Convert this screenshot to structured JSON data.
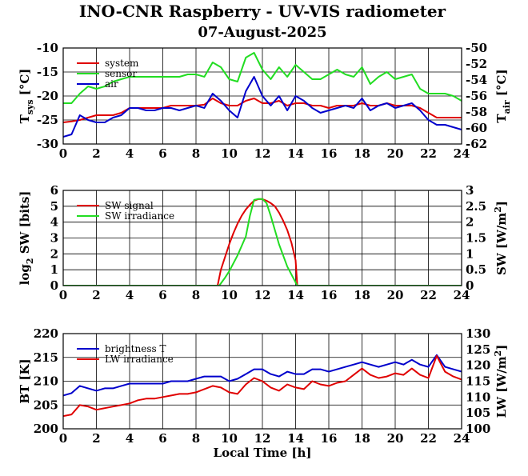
{
  "header": {
    "title": "INO-CNR Raspberry - UV-VIS radiometer",
    "date": "07-August-2025"
  },
  "colors": {
    "red": "#e00000",
    "green": "#22dd22",
    "blue": "#0000cc"
  },
  "chart_data": [
    {
      "type": "line",
      "panel": "temperatures",
      "x_ticks": [
        "0",
        "2",
        "4",
        "6",
        "8",
        "10",
        "12",
        "14",
        "16",
        "18",
        "20",
        "22",
        "24"
      ],
      "xlim": [
        0,
        24
      ],
      "ylabel_left": "T_sys [°C]",
      "ylabel_left_main": "T",
      "ylabel_left_sub": "sys",
      "ylabel_left_unit": " [°C]",
      "ylim_left": [
        -30,
        -10
      ],
      "yticks_left": [
        "-30",
        "-25",
        "-20",
        "-15",
        "-10"
      ],
      "ylabel_right": "T_air [°C]",
      "ylabel_right_main": "T",
      "ylabel_right_sub": "air",
      "ylabel_right_unit": " [°C]",
      "ylim_right": [
        -62,
        -50
      ],
      "yticks_right": [
        "-62",
        "-60",
        "-58",
        "-56",
        "-54",
        "-52",
        "-50"
      ],
      "grid": true,
      "legend_position": "top-left",
      "series": [
        {
          "name": "system",
          "color": "#e00000",
          "axis": "left",
          "x": [
            0,
            0.5,
            1,
            1.5,
            2,
            2.5,
            3,
            3.5,
            4,
            4.5,
            5,
            5.5,
            6,
            6.5,
            7,
            7.5,
            8,
            8.5,
            9,
            9.5,
            10,
            10.5,
            11,
            11.5,
            12,
            12.5,
            13,
            13.5,
            14,
            14.5,
            15,
            15.5,
            16,
            16.5,
            17,
            17.5,
            18,
            18.5,
            19,
            19.5,
            20,
            20.5,
            21,
            21.5,
            22,
            22.5,
            23,
            23.5,
            24
          ],
          "y": [
            -25.5,
            -25.3,
            -25,
            -24.5,
            -24,
            -24,
            -24,
            -23.5,
            -22.5,
            -22.5,
            -22.5,
            -22.5,
            -22.5,
            -22,
            -22,
            -22,
            -22,
            -21.8,
            -20.5,
            -21.5,
            -22,
            -22,
            -21,
            -20.5,
            -21.5,
            -21.5,
            -21,
            -22,
            -21.5,
            -21.5,
            -22,
            -22,
            -22.5,
            -22,
            -22,
            -22,
            -21.5,
            -22,
            -22,
            -21.5,
            -22,
            -22,
            -22,
            -22.5,
            -23.5,
            -24.5,
            -24.5,
            -24.5,
            -24.5
          ]
        },
        {
          "name": "sensor",
          "color": "#22dd22",
          "axis": "left",
          "x": [
            0,
            0.5,
            1,
            1.5,
            2,
            2.5,
            3,
            3.5,
            4,
            4.5,
            5,
            5.5,
            6,
            6.5,
            7,
            7.5,
            8,
            8.5,
            9,
            9.5,
            10,
            10.5,
            11,
            11.5,
            12,
            12.5,
            13,
            13.5,
            14,
            14.5,
            15,
            15.5,
            16,
            16.5,
            17,
            17.5,
            18,
            18.5,
            19,
            19.5,
            20,
            20.5,
            21,
            21.5,
            22,
            22.5,
            23,
            23.5,
            24
          ],
          "y": [
            -21.5,
            -21.5,
            -19.5,
            -18,
            -18.5,
            -18,
            -17,
            -16.5,
            -16,
            -16,
            -16,
            -16,
            -16,
            -16,
            -16,
            -15.5,
            -15.5,
            -16,
            -13,
            -14,
            -16.5,
            -17,
            -12,
            -11,
            -14.5,
            -16.5,
            -14,
            -16,
            -13.5,
            -15,
            -16.5,
            -16.5,
            -15.5,
            -14.5,
            -15.5,
            -16,
            -14,
            -17.5,
            -16,
            -15,
            -16.5,
            -16,
            -15.5,
            -18.5,
            -19.5,
            -19.5,
            -19.5,
            -20,
            -21
          ]
        },
        {
          "name": "air",
          "color": "#0000cc",
          "axis": "left",
          "x": [
            0,
            0.5,
            1,
            1.5,
            2,
            2.5,
            3,
            3.5,
            4,
            4.5,
            5,
            5.5,
            6,
            6.5,
            7,
            7.5,
            8,
            8.5,
            9,
            9.5,
            10,
            10.5,
            11,
            11.5,
            12,
            12.5,
            13,
            13.5,
            14,
            14.5,
            15,
            15.5,
            16,
            16.5,
            17,
            17.5,
            18,
            18.5,
            19,
            19.5,
            20,
            20.5,
            21,
            21.5,
            22,
            22.5,
            23,
            23.5,
            24
          ],
          "y": [
            -28.5,
            -28,
            -24,
            -25,
            -25.5,
            -25.5,
            -24.5,
            -24,
            -22.5,
            -22.5,
            -23,
            -23,
            -22.5,
            -22.5,
            -23,
            -22.5,
            -22,
            -22.5,
            -19.5,
            -21,
            -23,
            -24.5,
            -19,
            -16,
            -20,
            -22,
            -20,
            -23,
            -20,
            -21,
            -22.5,
            -23.5,
            -23,
            -22.5,
            -22,
            -22.5,
            -20.5,
            -23,
            -22,
            -21.5,
            -22.5,
            -22,
            -21.5,
            -23,
            -25,
            -26,
            -26,
            -26.5,
            -27
          ]
        }
      ]
    },
    {
      "type": "line",
      "panel": "shortwave",
      "x_ticks": [
        "0",
        "2",
        "4",
        "6",
        "8",
        "10",
        "12",
        "14",
        "16",
        "18",
        "20",
        "22",
        "24"
      ],
      "xlim": [
        0,
        24
      ],
      "ylabel_left": "log2 SW [bits]",
      "ylabel_left_main": "log",
      "ylabel_left_sub": "2",
      "ylabel_left_unit": " SW [bits]",
      "ylim_left": [
        0,
        6
      ],
      "yticks_left": [
        "0",
        "1",
        "2",
        "3",
        "4",
        "5",
        "6"
      ],
      "ylabel_right": "SW [W/m2]",
      "ylabel_right_main": "SW [W/m",
      "ylabel_right_sup": "2",
      "ylabel_right_unit": "]",
      "ylim_right": [
        0,
        3
      ],
      "yticks_right": [
        "0",
        "0.5",
        "1",
        "1.5",
        "2",
        "2.5",
        "3"
      ],
      "grid": true,
      "legend_position": "top-left",
      "series": [
        {
          "name": "SW signal",
          "color": "#e00000",
          "axis": "left",
          "x": [
            0,
            9.3,
            9.5,
            9.75,
            10,
            10.25,
            10.5,
            10.75,
            11,
            11.25,
            11.5,
            11.75,
            12,
            12.25,
            12.5,
            12.75,
            13,
            13.25,
            13.5,
            13.75,
            14,
            14.1,
            24
          ],
          "y": [
            0,
            0,
            1.0,
            1.8,
            2.6,
            3.3,
            3.9,
            4.4,
            4.8,
            5.1,
            5.35,
            5.45,
            5.45,
            5.35,
            5.2,
            5.0,
            4.6,
            4.1,
            3.5,
            2.7,
            1.6,
            0,
            0
          ]
        },
        {
          "name": "SW irradiance",
          "color": "#22dd22",
          "axis": "right",
          "x": [
            0,
            9.4,
            9.75,
            10,
            10.5,
            11,
            11.25,
            11.5,
            11.75,
            12,
            12.25,
            12.5,
            13,
            13.5,
            14,
            14.1,
            24
          ],
          "y": [
            0,
            0,
            0.25,
            0.45,
            0.95,
            1.55,
            2.2,
            2.7,
            2.73,
            2.73,
            2.6,
            2.2,
            1.3,
            0.6,
            0.1,
            0,
            0
          ]
        }
      ]
    },
    {
      "type": "line",
      "panel": "longwave",
      "x_ticks": [
        "0",
        "2",
        "4",
        "6",
        "8",
        "10",
        "12",
        "14",
        "16",
        "18",
        "20",
        "22",
        "24"
      ],
      "xlim": [
        0,
        24
      ],
      "xlabel": "Local Time [h]",
      "ylabel_left": "BT [K]",
      "ylim_left": [
        200,
        220
      ],
      "yticks_left": [
        "200",
        "205",
        "210",
        "215",
        "220"
      ],
      "ylabel_right": "LW [W/m2]",
      "ylabel_right_main": "LW [W/m",
      "ylabel_right_sup": "2",
      "ylabel_right_unit": "]",
      "ylim_right": [
        100,
        130
      ],
      "yticks_right": [
        "100",
        "105",
        "110",
        "115",
        "120",
        "125",
        "130"
      ],
      "grid": true,
      "legend_position": "top-left",
      "series": [
        {
          "name": "brightness T",
          "color": "#0000cc",
          "axis": "left",
          "x": [
            0,
            0.5,
            1,
            1.5,
            2,
            2.5,
            3,
            3.5,
            4,
            4.5,
            5,
            5.5,
            6,
            6.5,
            7,
            7.5,
            8,
            8.5,
            9,
            9.5,
            10,
            10.5,
            11,
            11.5,
            12,
            12.5,
            13,
            13.5,
            14,
            14.5,
            15,
            15.5,
            16,
            16.5,
            17,
            17.5,
            18,
            18.5,
            19,
            19.5,
            20,
            20.5,
            21,
            21.5,
            22,
            22.5,
            23,
            23.5,
            24
          ],
          "y": [
            207,
            207.5,
            209,
            208.5,
            208,
            208.5,
            208.5,
            209,
            209.5,
            209.5,
            209.5,
            209.5,
            209.5,
            210,
            210,
            210,
            210.5,
            211,
            211,
            211,
            210,
            210.5,
            211.5,
            212.5,
            212.5,
            211.5,
            211,
            212,
            211.5,
            211.5,
            212.5,
            212.5,
            212,
            212.5,
            213,
            213.5,
            214,
            213.5,
            213,
            213.5,
            214,
            213.5,
            214.5,
            213.5,
            213,
            215.5,
            213,
            212.5,
            212
          ]
        },
        {
          "name": "LW irradiance",
          "color": "#e00000",
          "axis": "right",
          "x": [
            0,
            0.5,
            1,
            1.5,
            2,
            2.5,
            3,
            3.5,
            4,
            4.5,
            5,
            5.5,
            6,
            6.5,
            7,
            7.5,
            8,
            8.5,
            9,
            9.5,
            10,
            10.5,
            11,
            11.5,
            12,
            12.5,
            13,
            13.5,
            14,
            14.5,
            15,
            15.5,
            16,
            16.5,
            17,
            17.5,
            18,
            18.5,
            19,
            19.5,
            20,
            20.5,
            21,
            21.5,
            22,
            22.5,
            23,
            23.5,
            24
          ],
          "y": [
            104,
            104.5,
            107.5,
            107,
            106,
            106.5,
            107,
            107.5,
            108,
            109,
            109.5,
            109.5,
            110,
            110.5,
            111,
            111,
            111.5,
            112.5,
            113.5,
            113,
            111.5,
            111,
            114,
            116,
            115,
            113,
            112,
            114,
            113,
            112.5,
            115,
            114,
            113.5,
            114.5,
            115,
            117,
            119,
            117,
            116,
            116.5,
            117.5,
            117,
            119,
            117,
            116,
            123,
            118,
            116.5,
            115.5
          ]
        }
      ]
    }
  ]
}
